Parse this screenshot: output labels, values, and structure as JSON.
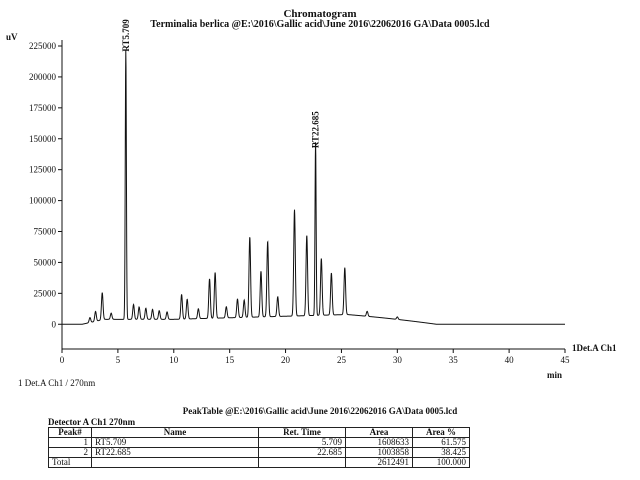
{
  "header": {
    "title": "Chromatogram",
    "subtitle": "Terminalia berlica @E:\\2016\\Gallic acid\\June 2016\\22062016 GA\\Data 0005.lcd"
  },
  "chart_data": {
    "type": "line",
    "title": "Chromatogram",
    "xlabel": "min",
    "ylabel": "uV",
    "xlim": [
      0,
      45
    ],
    "ylim": [
      -20000,
      225000
    ],
    "xticks": [
      0,
      5,
      10,
      15,
      20,
      25,
      30,
      35,
      40,
      45
    ],
    "yticks": [
      0,
      25000,
      50000,
      75000,
      100000,
      125000,
      150000,
      175000,
      200000,
      225000
    ],
    "channel_label": "1Det.A Ch1",
    "peaks": [
      {
        "rt": 2.5,
        "height": 4000
      },
      {
        "rt": 3.0,
        "height": 8000
      },
      {
        "rt": 3.6,
        "height": 22000
      },
      {
        "rt": 4.4,
        "height": 5000
      },
      {
        "rt": 5.709,
        "height": 218000,
        "label": "RT5.709"
      },
      {
        "rt": 6.4,
        "height": 12000
      },
      {
        "rt": 6.9,
        "height": 10000
      },
      {
        "rt": 7.5,
        "height": 9000
      },
      {
        "rt": 8.1,
        "height": 8000
      },
      {
        "rt": 8.7,
        "height": 7000
      },
      {
        "rt": 9.4,
        "height": 6000
      },
      {
        "rt": 10.7,
        "height": 20000
      },
      {
        "rt": 11.2,
        "height": 16000
      },
      {
        "rt": 12.2,
        "height": 8000
      },
      {
        "rt": 13.2,
        "height": 32000
      },
      {
        "rt": 13.7,
        "height": 37000
      },
      {
        "rt": 14.7,
        "height": 9000
      },
      {
        "rt": 15.7,
        "height": 15000
      },
      {
        "rt": 16.3,
        "height": 14000
      },
      {
        "rt": 16.8,
        "height": 65000
      },
      {
        "rt": 17.8,
        "height": 37000
      },
      {
        "rt": 18.4,
        "height": 61000
      },
      {
        "rt": 19.3,
        "height": 16000
      },
      {
        "rt": 20.8,
        "height": 86000
      },
      {
        "rt": 21.9,
        "height": 65000
      },
      {
        "rt": 22.685,
        "height": 140000,
        "label": "RT22.685"
      },
      {
        "rt": 23.2,
        "height": 46000
      },
      {
        "rt": 24.1,
        "height": 34000
      },
      {
        "rt": 25.3,
        "height": 38000
      },
      {
        "rt": 27.3,
        "height": 4000
      },
      {
        "rt": 30.0,
        "height": 2000
      }
    ]
  },
  "detector": {
    "label": "1  Det.A Ch1 / 270nm"
  },
  "peak_table": {
    "title": "PeakTable @E:\\2016\\Gallic acid\\June 2016\\22062016 GA\\Data 0005.lcd",
    "detector_label": "Detector A Ch1 270nm",
    "headers": [
      "Peak#",
      "Name",
      "Ret. Time",
      "Area",
      "Area %"
    ],
    "rows": [
      {
        "peak": "1",
        "name": "RT5.709",
        "ret_time": "5.709",
        "area": "1608633",
        "area_pct": "61.575"
      },
      {
        "peak": "2",
        "name": "RT22.685",
        "ret_time": "22.685",
        "area": "1003858",
        "area_pct": "38.425"
      }
    ],
    "total": {
      "label": "Total",
      "area": "2612491",
      "area_pct": "100.000"
    }
  }
}
